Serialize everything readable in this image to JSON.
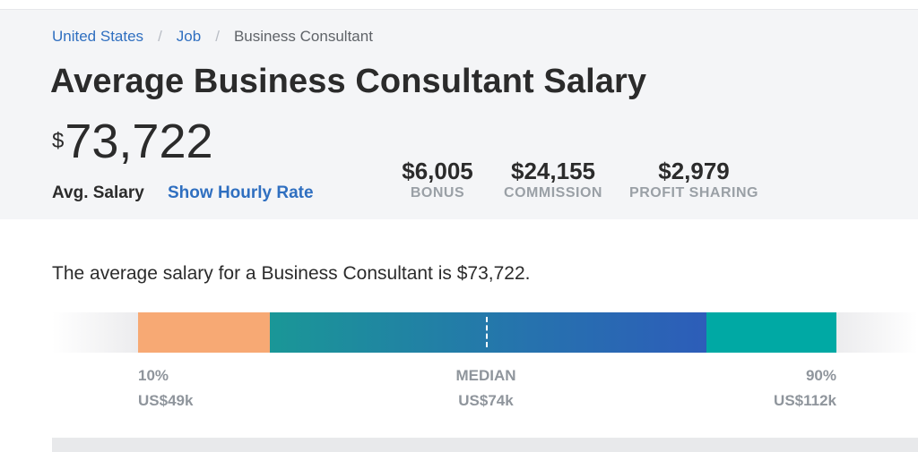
{
  "breadcrumb": {
    "items": [
      "United States",
      "Job"
    ],
    "current": "Business Consultant",
    "separator": "/"
  },
  "page": {
    "title": "Average Business Consultant Salary"
  },
  "salary": {
    "currency_symbol": "$",
    "amount": "73,722",
    "label": "Avg. Salary",
    "hourly_link": "Show Hourly Rate"
  },
  "compensation": [
    {
      "value": "$6,005",
      "label": "BONUS"
    },
    {
      "value": "$24,155",
      "label": "COMMISSION"
    },
    {
      "value": "$2,979",
      "label": "PROFIT SHARING"
    }
  ],
  "summary": "The average salary for a Business Consultant is $73,722.",
  "range": {
    "low": {
      "percentile": "10%",
      "amount": "US$49k"
    },
    "median": {
      "percentile": "MEDIAN",
      "amount": "US$74k"
    },
    "high": {
      "percentile": "90%",
      "amount": "US$112k"
    }
  },
  "colors": {
    "link": "#2f6fc0",
    "low_segment": "#f7a974",
    "mid_segment_start": "#1a9797",
    "mid_segment_end": "#2d5db9",
    "high_segment": "#00a9a4",
    "hero_background": "#f4f5f7"
  }
}
